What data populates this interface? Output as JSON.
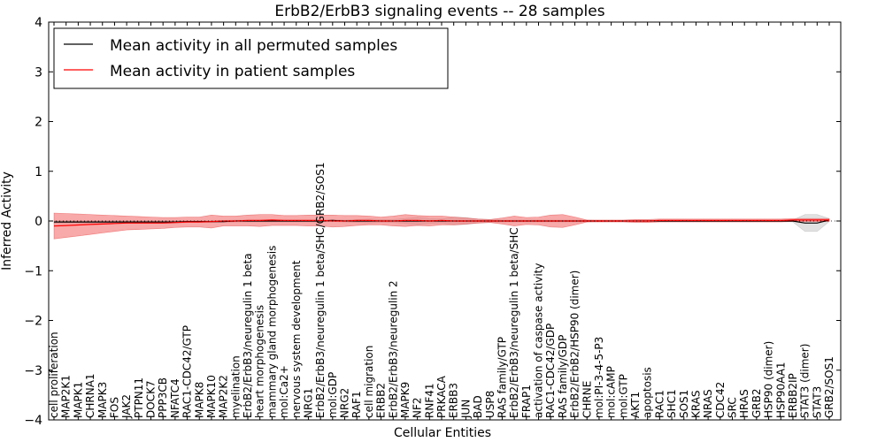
{
  "chart_data": {
    "type": "line",
    "title": "ErbB2/ErbB3 signaling events -- 28 samples",
    "xlabel": "Cellular Entities",
    "ylabel": "Inferred Activity",
    "ylim": [
      -4,
      4
    ],
    "yticks": [
      -4,
      -3,
      -2,
      -1,
      0,
      1,
      2,
      3,
      4
    ],
    "grid": false,
    "legend_position": "top-left",
    "categories": [
      "cell proliferation",
      "MAP2K1",
      "MAPK1",
      "CHRNA1",
      "MAPK3",
      "FOS",
      "JAK2",
      "PTPN11",
      "DOCK7",
      "PPP3CB",
      "NFATC4",
      "RAC1-CDC42/GTP",
      "MAPK8",
      "MAPK10",
      "MAP2K2",
      "myelination",
      "ErbB2/ErbB3/neuregulin 1 beta",
      "heart morphogenesis",
      "mammary gland morphogenesis",
      "mol:Ca2+",
      "nervous system development",
      "NRG1",
      "ErbB2/ErbB3/neuregulin 1 beta/SHC/GRB2/SOS1",
      "mol:GDP",
      "NRG2",
      "RAF1",
      "cell migration",
      "ERBB2",
      "ErbB2/ErbB3/neuregulin 2",
      "MAPK9",
      "NF2",
      "RNF41",
      "PRKACA",
      "ERBB3",
      "JUN",
      "BAD",
      "USP8",
      "RAS family/GTP",
      "ErbB2/ErbB3/neuregulin 1 beta/SHC",
      "FRAP1",
      "activation of caspase activity",
      "RAC1-CDC42/GDP",
      "RAS family/GDP",
      "ErbB2/ErbB2/HSP90 (dimer)",
      "CHRNE",
      "mol:PI-3-4-5-P3",
      "mol:cAMP",
      "mol:GTP",
      "AKT1",
      "apoptosis",
      "RAC1",
      "SHC1",
      "SOS1",
      "KRAS",
      "NRAS",
      "CDC42",
      "SRC",
      "HRAS",
      "GRB2",
      "HSP90 (dimer)",
      "HSP90AA1",
      "ERBB2IP",
      "STAT3 (dimer)",
      "STAT3",
      "GRB2/SOS1"
    ],
    "series": [
      {
        "name": "Mean activity in all permuted samples",
        "color": "#000000",
        "values": [
          -0.02,
          -0.02,
          -0.02,
          -0.02,
          -0.02,
          -0.02,
          -0.02,
          -0.02,
          -0.02,
          -0.02,
          -0.02,
          -0.01,
          -0.01,
          -0.01,
          -0.01,
          0.0,
          0.0,
          0.0,
          0.0,
          0.0,
          0.0,
          0.0,
          0.0,
          0.01,
          0.0,
          0.0,
          0.0,
          0.0,
          0.0,
          0.0,
          0.0,
          0.0,
          0.0,
          0.0,
          0.0,
          0.0,
          0.0,
          0.0,
          0.0,
          0.0,
          0.0,
          0.0,
          0.0,
          0.0,
          0.0,
          0.0,
          0.0,
          0.0,
          0.0,
          0.0,
          0.0,
          0.0,
          0.0,
          0.0,
          0.0,
          0.0,
          0.0,
          0.0,
          0.0,
          0.0,
          0.0,
          0.0,
          -0.04,
          -0.04,
          0.02
        ],
        "band": [
          0.03,
          0.03,
          0.03,
          0.03,
          0.03,
          0.03,
          0.03,
          0.03,
          0.03,
          0.03,
          0.03,
          0.02,
          0.02,
          0.02,
          0.02,
          0.02,
          0.02,
          0.02,
          0.02,
          0.02,
          0.02,
          0.02,
          0.02,
          0.02,
          0.02,
          0.03,
          0.04,
          0.03,
          0.03,
          0.05,
          0.08,
          0.05,
          0.04,
          0.08,
          0.07,
          0.04,
          0.03,
          0.02,
          0.02,
          0.02,
          0.02,
          0.02,
          0.02,
          0.02,
          0.02,
          0.01,
          0.01,
          0.01,
          0.01,
          0.01,
          0.01,
          0.01,
          0.01,
          0.01,
          0.01,
          0.01,
          0.01,
          0.01,
          0.01,
          0.01,
          0.01,
          0.02,
          0.17,
          0.17,
          0.03
        ]
      },
      {
        "name": "Mean activity in patient samples",
        "color": "#ff0000",
        "values": [
          -0.1,
          -0.09,
          -0.08,
          -0.07,
          -0.06,
          -0.05,
          -0.04,
          -0.04,
          -0.04,
          -0.04,
          -0.03,
          -0.02,
          -0.02,
          -0.01,
          0.0,
          0.0,
          0.01,
          0.01,
          0.02,
          0.01,
          0.01,
          0.01,
          0.01,
          0.0,
          0.0,
          0.01,
          0.01,
          0.0,
          0.0,
          0.01,
          0.01,
          0.0,
          0.01,
          0.0,
          0.0,
          0.0,
          0.0,
          0.0,
          0.0,
          0.0,
          0.0,
          0.0,
          0.0,
          0.0,
          0.0,
          0.0,
          0.0,
          0.0,
          0.0,
          0.0,
          0.01,
          0.01,
          0.01,
          0.01,
          0.01,
          0.01,
          0.01,
          0.01,
          0.01,
          0.01,
          0.01,
          0.02,
          0.02,
          0.02,
          0.02
        ],
        "band": [
          0.26,
          0.24,
          0.22,
          0.2,
          0.18,
          0.16,
          0.14,
          0.13,
          0.12,
          0.11,
          0.1,
          0.1,
          0.1,
          0.13,
          0.1,
          0.1,
          0.11,
          0.12,
          0.11,
          0.1,
          0.1,
          0.11,
          0.11,
          0.12,
          0.11,
          0.1,
          0.09,
          0.08,
          0.1,
          0.12,
          0.1,
          0.1,
          0.09,
          0.08,
          0.06,
          0.04,
          0.03,
          0.06,
          0.1,
          0.07,
          0.08,
          0.12,
          0.13,
          0.08,
          0.02,
          0.02,
          0.02,
          0.02,
          0.03,
          0.03,
          0.03,
          0.03,
          0.03,
          0.03,
          0.03,
          0.03,
          0.03,
          0.03,
          0.03,
          0.03,
          0.03,
          0.03,
          0.03,
          0.03,
          0.03
        ]
      }
    ]
  }
}
